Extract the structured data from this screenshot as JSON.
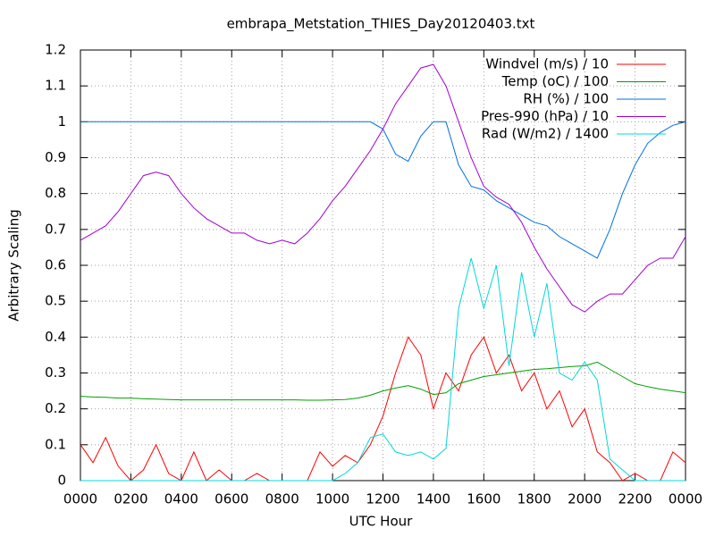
{
  "chart_data": {
    "type": "line",
    "title": "embrapa_Metstation_THIES_Day20120403.txt",
    "xlabel": "UTC Hour",
    "ylabel": "Arbitrary Scaling",
    "x": [
      0,
      0.5,
      1,
      1.5,
      2,
      2.5,
      3,
      3.5,
      4,
      4.5,
      5,
      5.5,
      6,
      6.5,
      7,
      7.5,
      8,
      8.5,
      9,
      9.5,
      10,
      10.5,
      11,
      11.5,
      12,
      12.5,
      13,
      13.5,
      14,
      14.5,
      15,
      15.5,
      16,
      16.5,
      17,
      17.5,
      18,
      18.5,
      19,
      19.5,
      20,
      20.5,
      21,
      21.5,
      22,
      22.5,
      23,
      23.5,
      24
    ],
    "series": [
      {
        "name": "Windvel (m/s) / 10",
        "color": "#ff0000",
        "values": [
          0.1,
          0.05,
          0.12,
          0.04,
          0,
          0.03,
          0.1,
          0.02,
          0,
          0.08,
          0,
          0.03,
          0,
          0,
          0.02,
          0,
          0,
          0,
          0,
          0.08,
          0.04,
          0.07,
          0.05,
          0.1,
          0.18,
          0.3,
          0.4,
          0.35,
          0.2,
          0.3,
          0.25,
          0.35,
          0.4,
          0.3,
          0.35,
          0.25,
          0.3,
          0.2,
          0.25,
          0.15,
          0.2,
          0.08,
          0.05,
          0,
          0.02,
          0,
          0,
          0.08,
          0.05
        ]
      },
      {
        "name": "Temp (oC) / 100",
        "color": "#00a000",
        "values": [
          0.235,
          0.233,
          0.232,
          0.23,
          0.23,
          0.228,
          0.227,
          0.226,
          0.225,
          0.225,
          0.225,
          0.225,
          0.225,
          0.225,
          0.225,
          0.225,
          0.225,
          0.225,
          0.224,
          0.224,
          0.225,
          0.226,
          0.23,
          0.238,
          0.25,
          0.258,
          0.265,
          0.255,
          0.24,
          0.245,
          0.27,
          0.28,
          0.29,
          0.295,
          0.3,
          0.305,
          0.31,
          0.312,
          0.315,
          0.318,
          0.32,
          0.33,
          0.31,
          0.29,
          0.27,
          0.262,
          0.255,
          0.25,
          0.245
        ]
      },
      {
        "name": "RH (%) / 100",
        "color": "#0070e0",
        "values": [
          1,
          1,
          1,
          1,
          1,
          1,
          1,
          1,
          1,
          1,
          1,
          1,
          1,
          1,
          1,
          1,
          1,
          1,
          1,
          1,
          1,
          1,
          1,
          1,
          0.98,
          0.91,
          0.89,
          0.96,
          1,
          1,
          0.88,
          0.82,
          0.81,
          0.78,
          0.76,
          0.74,
          0.72,
          0.71,
          0.68,
          0.66,
          0.64,
          0.62,
          0.7,
          0.8,
          0.88,
          0.94,
          0.97,
          0.99,
          1
        ]
      },
      {
        "name": "Pres-990 (hPa) / 10",
        "color": "#a000d0",
        "values": [
          0.67,
          0.69,
          0.71,
          0.75,
          0.8,
          0.85,
          0.86,
          0.85,
          0.8,
          0.76,
          0.73,
          0.71,
          0.69,
          0.69,
          0.67,
          0.66,
          0.67,
          0.66,
          0.69,
          0.73,
          0.78,
          0.82,
          0.87,
          0.92,
          0.98,
          1.05,
          1.1,
          1.15,
          1.16,
          1.1,
          1.0,
          0.9,
          0.82,
          0.79,
          0.77,
          0.72,
          0.65,
          0.59,
          0.54,
          0.49,
          0.47,
          0.5,
          0.52,
          0.52,
          0.56,
          0.6,
          0.62,
          0.62,
          0.68
        ]
      },
      {
        "name": "Rad (W/m2) / 1400",
        "color": "#00d8d8",
        "values": [
          0,
          0,
          0,
          0,
          0,
          0,
          0,
          0,
          0,
          0,
          0,
          0,
          0,
          0,
          0,
          0,
          0,
          0,
          0,
          0,
          0,
          0.02,
          0.05,
          0.12,
          0.13,
          0.08,
          0.07,
          0.08,
          0.06,
          0.09,
          0.48,
          0.62,
          0.48,
          0.6,
          0.32,
          0.58,
          0.4,
          0.55,
          0.3,
          0.28,
          0.33,
          0.28,
          0.06,
          0.03,
          0,
          0,
          0,
          0,
          0
        ]
      }
    ],
    "xlim": [
      0,
      24
    ],
    "xticks": [
      {
        "value": 0,
        "label": "0000"
      },
      {
        "value": 2,
        "label": "0200"
      },
      {
        "value": 4,
        "label": "0400"
      },
      {
        "value": 6,
        "label": "0600"
      },
      {
        "value": 8,
        "label": "0800"
      },
      {
        "value": 10,
        "label": "1000"
      },
      {
        "value": 12,
        "label": "1200"
      },
      {
        "value": 14,
        "label": "1400"
      },
      {
        "value": 16,
        "label": "1600"
      },
      {
        "value": 18,
        "label": "1800"
      },
      {
        "value": 20,
        "label": "2000"
      },
      {
        "value": 22,
        "label": "2200"
      },
      {
        "value": 24,
        "label": "0000"
      }
    ],
    "ylim": [
      0,
      1.2
    ],
    "yticks": [
      0,
      0.1,
      0.2,
      0.3,
      0.4,
      0.5,
      0.6,
      0.7,
      0.8,
      0.9,
      1,
      1.1,
      1.2
    ],
    "grid": true,
    "legend": "top-right"
  }
}
